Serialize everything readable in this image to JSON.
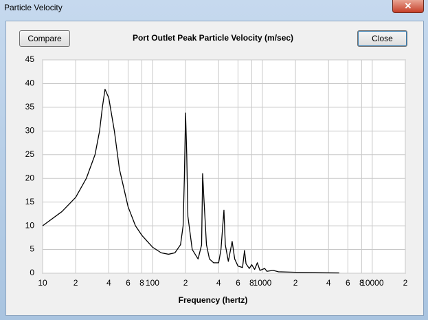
{
  "window": {
    "title": "Particle Velocity"
  },
  "buttons": {
    "compare": "Compare",
    "close": "Close"
  },
  "chart_data": {
    "type": "line",
    "title": "Port Outlet Peak Particle Velocity (m/sec)",
    "x_label": "Frequency (hertz)",
    "x_log": true,
    "grid": true,
    "color": "#000000",
    "x": [
      10,
      15,
      20,
      25,
      30,
      33,
      35,
      37,
      40,
      45,
      50,
      60,
      70,
      80,
      100,
      120,
      140,
      160,
      180,
      190,
      195,
      200,
      205,
      210,
      230,
      260,
      280,
      286,
      295,
      310,
      330,
      360,
      400,
      420,
      447,
      460,
      490,
      531,
      560,
      600,
      660,
      688,
      710,
      760,
      800,
      850,
      900,
      950,
      1050,
      1100,
      1250,
      1400,
      2000,
      3000,
      5000
    ],
    "values": [
      10,
      13,
      16,
      20,
      25,
      30,
      35,
      38.8,
      37,
      30,
      22,
      14,
      10,
      8,
      5.5,
      4.3,
      4,
      4.3,
      6,
      10,
      20,
      33.8,
      25,
      12,
      5,
      3,
      6,
      21,
      15,
      6,
      3,
      2.2,
      2.2,
      5,
      13.3,
      6,
      2.5,
      6.7,
      3,
      1.5,
      1.2,
      4.8,
      2,
      1,
      1.8,
      0.8,
      2.2,
      0.6,
      1,
      0.4,
      0.6,
      0.3,
      0.2,
      0.1,
      0.05
    ],
    "xlim": [
      10,
      20000
    ],
    "ylim": [
      0,
      45
    ],
    "xticks": [
      10,
      {
        "value": 20,
        "label": "2"
      },
      {
        "value": 40,
        "label": "4"
      },
      {
        "value": 60,
        "label": "6"
      },
      {
        "value": 80,
        "label": "8"
      },
      100,
      {
        "value": 200,
        "label": "2"
      },
      {
        "value": 400,
        "label": "4"
      },
      {
        "value": 600,
        "label": "6"
      },
      {
        "value": 800,
        "label": "8"
      },
      1000,
      {
        "value": 2000,
        "label": "2"
      },
      {
        "value": 4000,
        "label": "4"
      },
      {
        "value": 6000,
        "label": "6"
      },
      {
        "value": 8000,
        "label": "8"
      },
      10000,
      {
        "value": 20000,
        "label": "2"
      }
    ],
    "yticks": [
      0,
      5,
      10,
      15,
      20,
      25,
      30,
      35,
      40,
      45
    ]
  }
}
